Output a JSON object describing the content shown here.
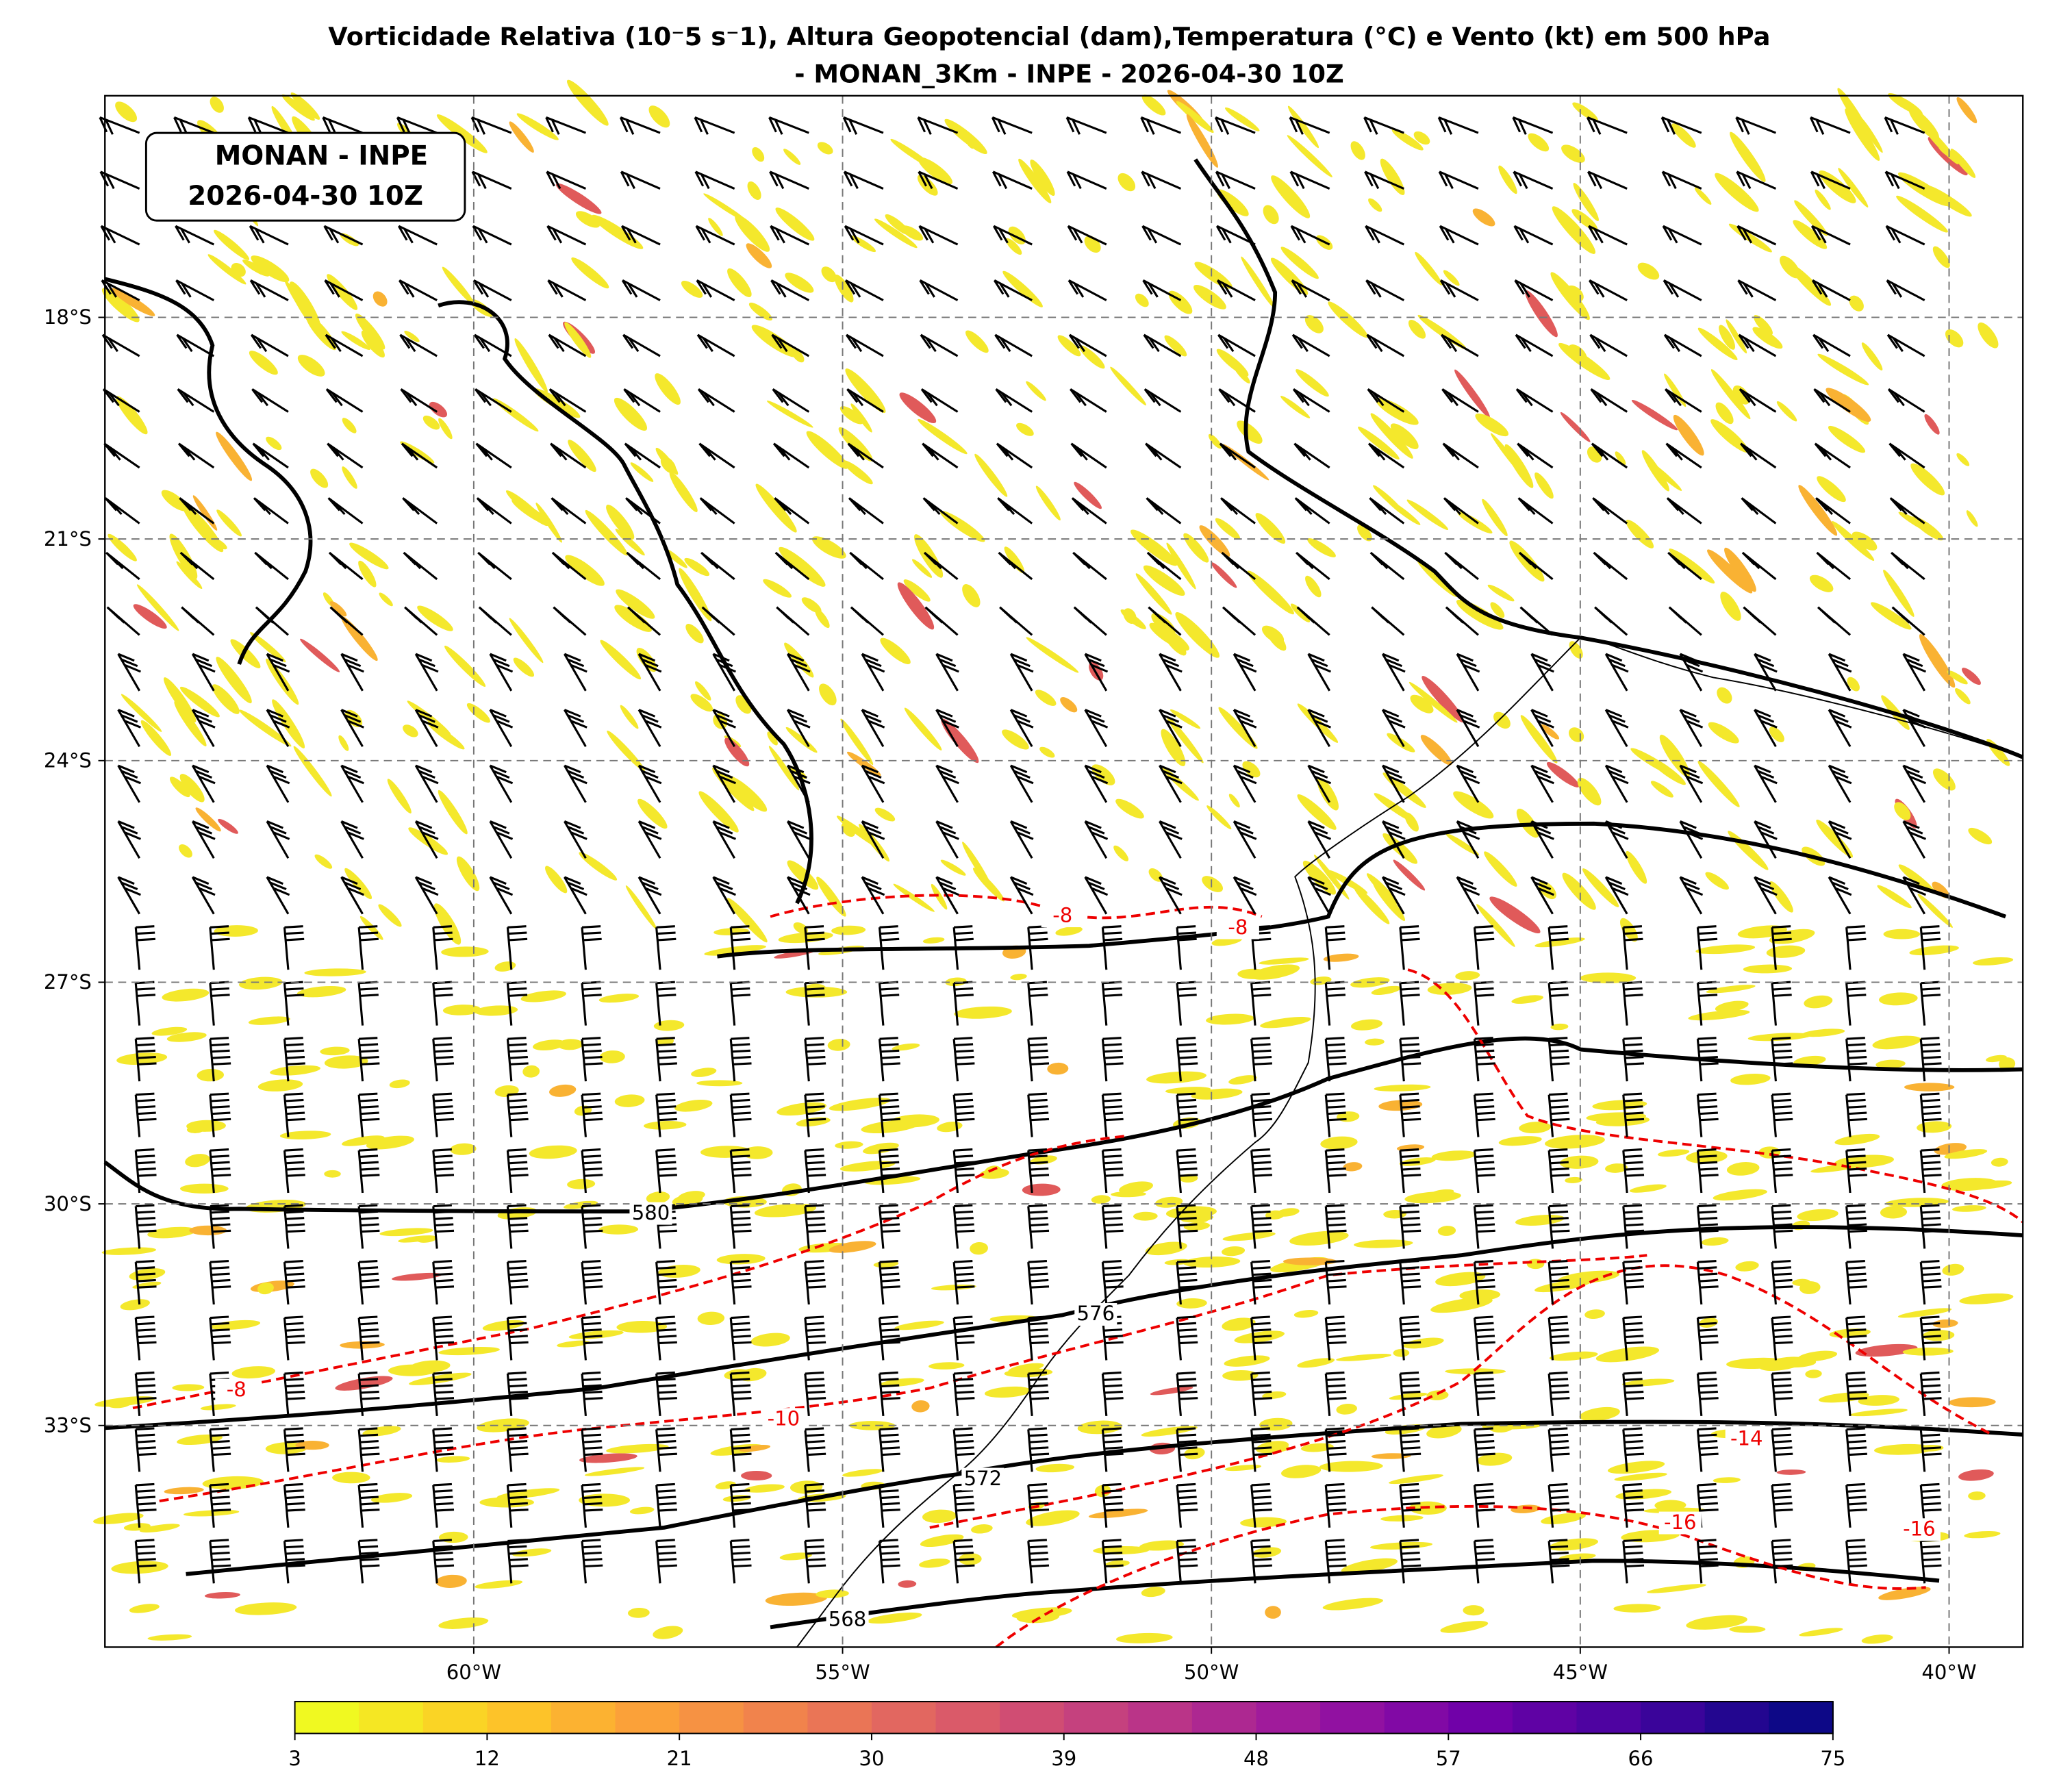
{
  "map": {
    "title": [
      "Vorticidade Relativa (10⁻5 s⁻1), Altura Geopotencial (dam),Temperatura (°C) e Vento (kt) em 500 hPa",
      "- MONAN_3Km - INPE - 2026-04-30 10Z"
    ],
    "info_box": [
      "MONAN - INPE",
      "2026-04-30 10Z"
    ],
    "lon_range": [
      -65,
      -39
    ],
    "lat_range": [
      -36,
      -15
    ],
    "lon_ticks": [
      {
        "value": -60,
        "label": "60°W"
      },
      {
        "value": -55,
        "label": "55°W"
      },
      {
        "value": -50,
        "label": "50°W"
      },
      {
        "value": -45,
        "label": "45°W"
      },
      {
        "value": -40,
        "label": "40°W"
      }
    ],
    "lat_ticks": [
      {
        "value": -18,
        "label": "18°S"
      },
      {
        "value": -21,
        "label": "21°S"
      },
      {
        "value": -24,
        "label": "24°S"
      },
      {
        "value": -27,
        "label": "27°S"
      },
      {
        "value": -30,
        "label": "30°S"
      },
      {
        "value": -33,
        "label": "33°S"
      }
    ],
    "contour_labels": [
      "580",
      "576",
      "572",
      "568",
      "-8",
      "-8",
      "-8",
      "-10",
      "-14",
      "-16",
      "-16"
    ],
    "colorbar": {
      "range": [
        3,
        75
      ],
      "ticks": [
        3,
        12,
        21,
        30,
        39,
        48,
        57,
        66,
        75
      ]
    }
  }
}
